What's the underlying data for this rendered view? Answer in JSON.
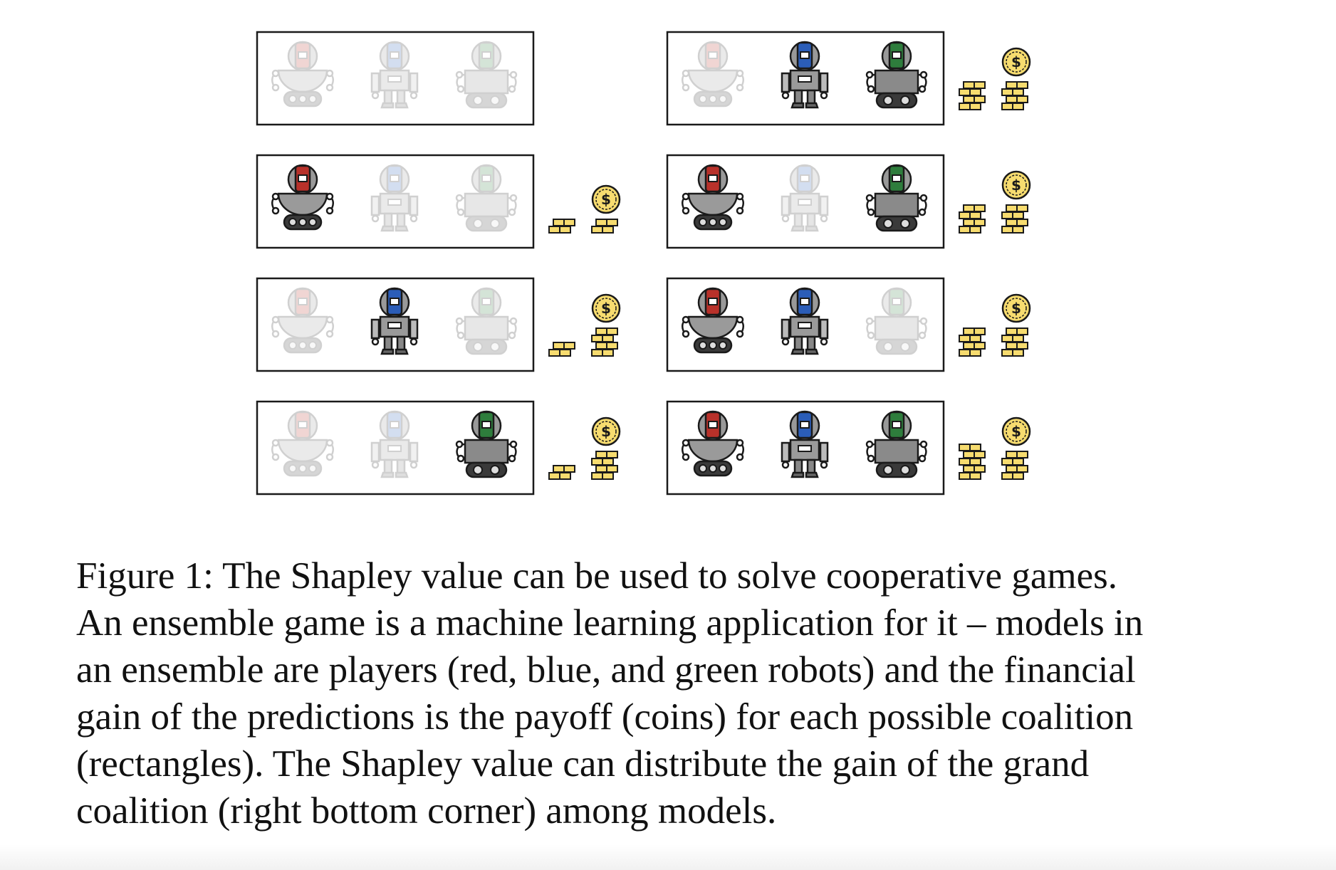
{
  "figure": {
    "players": [
      {
        "name": "red robot",
        "color": "#b8312a",
        "icon": "robot-wheels-icon"
      },
      {
        "name": "blue robot",
        "color": "#2b5db8",
        "icon": "robot-legs-icon"
      },
      {
        "name": "green robot",
        "color": "#2e7d3c",
        "icon": "robot-treads-icon"
      }
    ],
    "coalitions": [
      {
        "members": [
          false,
          false,
          false
        ],
        "payoff": "none"
      },
      {
        "members": [
          true,
          false,
          false
        ],
        "payoff": "small"
      },
      {
        "members": [
          false,
          true,
          false
        ],
        "payoff": "medium"
      },
      {
        "members": [
          false,
          false,
          true
        ],
        "payoff": "medium"
      },
      {
        "members": [
          false,
          true,
          true
        ],
        "payoff": "large"
      },
      {
        "members": [
          true,
          false,
          true
        ],
        "payoff": "large"
      },
      {
        "members": [
          true,
          true,
          false
        ],
        "payoff": "large"
      },
      {
        "members": [
          true,
          true,
          true
        ],
        "payoff": "largest"
      }
    ],
    "coin_symbol": "$",
    "coin_color": "#f7dc6f",
    "inactive_opacity": 0.2
  },
  "caption": {
    "lines": [
      "Figure 1: The Shapley value can be used to solve cooperative games.",
      "An ensemble game is a machine learning application for it – models in",
      "an ensemble are players (red, blue, and green robots) and the financial",
      "gain of the predictions is the payoff (coins) for each possible coalition",
      "(rectangles). The Shapley value can distribute the gain of the grand",
      "coalition (right bottom corner) among models."
    ]
  }
}
